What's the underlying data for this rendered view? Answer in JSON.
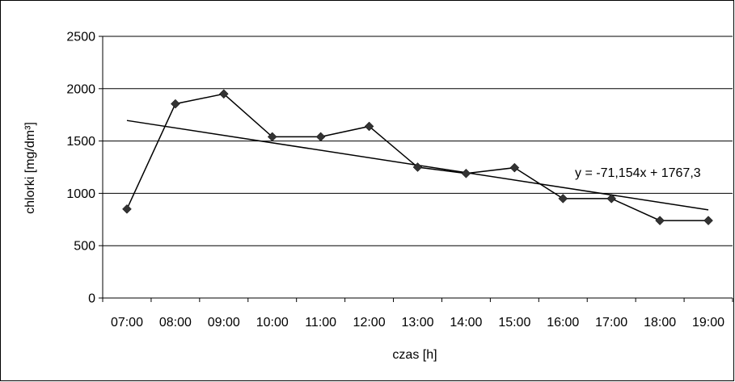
{
  "chart_data": {
    "type": "line",
    "categories": [
      "07:00",
      "08:00",
      "09:00",
      "10:00",
      "11:00",
      "12:00",
      "13:00",
      "14:00",
      "15:00",
      "16:00",
      "17:00",
      "18:00",
      "19:00"
    ],
    "series": [
      {
        "values": [
          850,
          1855,
          1950,
          1540,
          1540,
          1640,
          1250,
          1190,
          1245,
          950,
          950,
          740,
          740
        ]
      }
    ],
    "trendline": {
      "slope": -71.154,
      "intercept": 1767.3,
      "equation": "y = -71,154x + 1767,3"
    },
    "xlabel": "czas [h]",
    "ylabel": "chlorki [mg/dm³]",
    "ylim": [
      0,
      2500
    ],
    "yticks": [
      "0",
      "500",
      "1000",
      "1500",
      "2000",
      "2500"
    ],
    "grid": true,
    "legend": "none",
    "colors": {
      "line": "#000000",
      "marker": "#333333",
      "grid": "#000000"
    }
  }
}
